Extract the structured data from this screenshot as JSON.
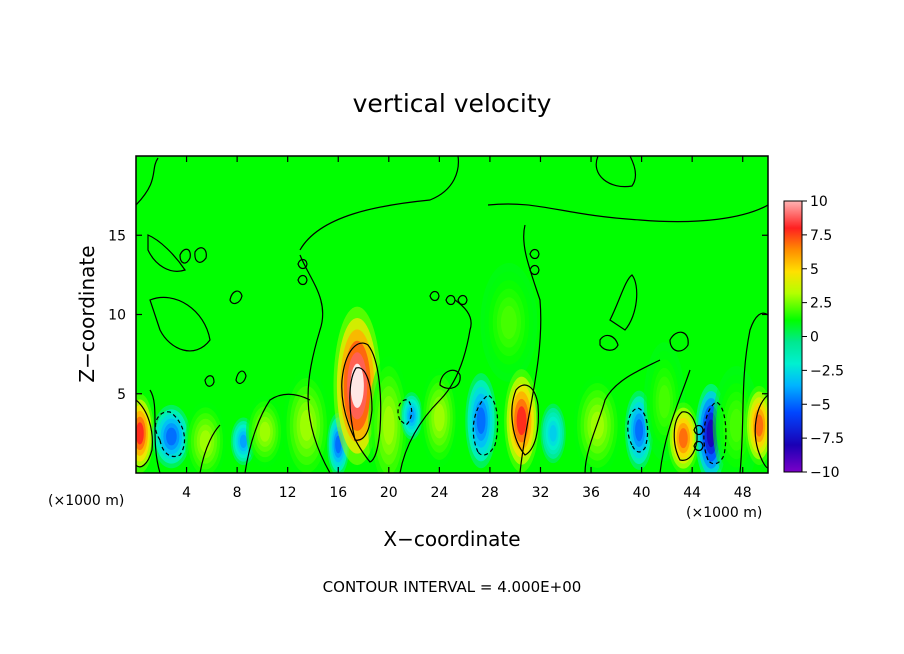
{
  "chart_data": {
    "type": "heatmap",
    "title": "vertical velocity",
    "xlabel": "X−coordinate",
    "ylabel": "Z−coordinate",
    "x_unit_left": "(×1000 m)",
    "x_unit_right": "(×1000 m)",
    "xlim": [
      0,
      50
    ],
    "ylim": [
      0,
      20
    ],
    "x_ticks": [
      4,
      8,
      12,
      16,
      20,
      24,
      28,
      32,
      36,
      40,
      44,
      48
    ],
    "y_ticks": [
      5,
      10,
      15
    ],
    "colorbar": {
      "range": [
        -10,
        10
      ],
      "ticks": [
        10,
        7.5,
        5,
        2.5,
        0,
        -2.5,
        -5,
        -7.5,
        -10
      ],
      "tick_labels": [
        "10",
        "7.5",
        "5",
        "2.5",
        "0",
        "−2.5",
        "−5",
        "−7.5",
        "−10"
      ]
    },
    "background_value": 0.5,
    "features": [
      {
        "x": 0.3,
        "z": 2.5,
        "w": 0.9,
        "h": 2.0,
        "value": 8
      },
      {
        "x": 2.8,
        "z": 2.3,
        "w": 1.2,
        "h": 1.6,
        "value": -5
      },
      {
        "x": 5.5,
        "z": 2.0,
        "w": 1.3,
        "h": 2.0,
        "value": 3
      },
      {
        "x": 8.5,
        "z": 2.0,
        "w": 0.8,
        "h": 1.2,
        "value": -4
      },
      {
        "x": 10.2,
        "z": 2.6,
        "w": 1.2,
        "h": 1.8,
        "value": 3
      },
      {
        "x": 13.5,
        "z": 3.0,
        "w": 1.5,
        "h": 2.8,
        "value": 3
      },
      {
        "x": 16.0,
        "z": 1.8,
        "w": 0.7,
        "h": 1.6,
        "value": -5
      },
      {
        "x": 17.5,
        "z": 5.5,
        "w": 1.5,
        "h": 4.0,
        "value": 10
      },
      {
        "x": 20.0,
        "z": 3.0,
        "w": 1.3,
        "h": 3.5,
        "value": 3
      },
      {
        "x": 21.8,
        "z": 3.6,
        "w": 0.7,
        "h": 1.2,
        "value": -4
      },
      {
        "x": 24.0,
        "z": 3.5,
        "w": 1.2,
        "h": 2.5,
        "value": 3
      },
      {
        "x": 27.3,
        "z": 3.3,
        "w": 1.0,
        "h": 2.4,
        "value": -5
      },
      {
        "x": 29.5,
        "z": 9.5,
        "w": 1.8,
        "h": 3.0,
        "value": 2
      },
      {
        "x": 30.5,
        "z": 3.3,
        "w": 1.1,
        "h": 2.6,
        "value": 8
      },
      {
        "x": 33.0,
        "z": 2.5,
        "w": 0.8,
        "h": 1.5,
        "value": -3
      },
      {
        "x": 36.5,
        "z": 3.0,
        "w": 1.5,
        "h": 2.5,
        "value": 3
      },
      {
        "x": 39.8,
        "z": 2.7,
        "w": 0.9,
        "h": 2.0,
        "value": -5
      },
      {
        "x": 41.8,
        "z": 4.5,
        "w": 1.3,
        "h": 3.0,
        "value": 2
      },
      {
        "x": 43.3,
        "z": 2.2,
        "w": 1.0,
        "h": 1.8,
        "value": 7
      },
      {
        "x": 45.5,
        "z": 2.5,
        "w": 1.0,
        "h": 2.5,
        "value": -8
      },
      {
        "x": 47.5,
        "z": 3.0,
        "w": 1.5,
        "h": 3.0,
        "value": 2
      },
      {
        "x": 49.3,
        "z": 3.0,
        "w": 0.9,
        "h": 2.0,
        "value": 7
      }
    ],
    "grid": false,
    "legend": "colorbar right"
  },
  "footer": {
    "contour_note": "CONTOUR INTERVAL = 4.000E+00"
  },
  "colors": {
    "background_field": "#00ff00",
    "contour": "#000000"
  }
}
